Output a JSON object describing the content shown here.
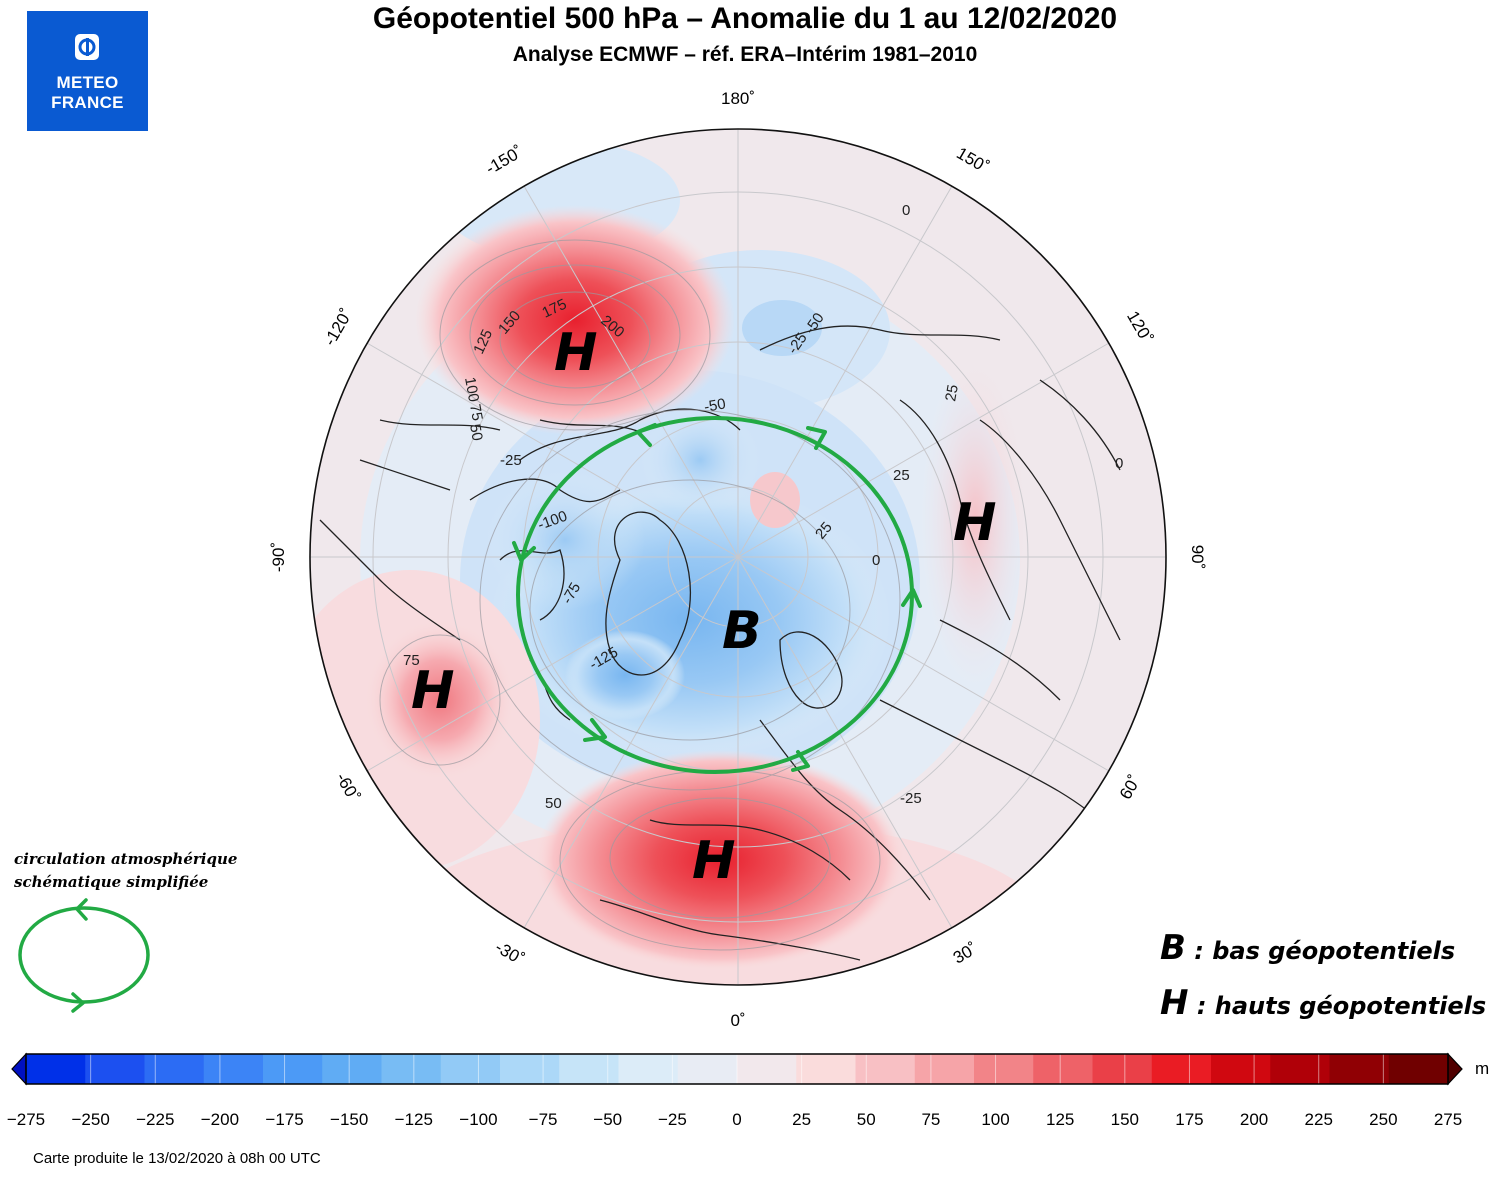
{
  "header": {
    "title": "Géopotentiel 500 hPa – Anomalie du 1 au 12/02/2020",
    "subtitle": "Analyse ECMWF – réf. ERA–Intérim 1981–2010"
  },
  "logo": {
    "line1": "METEO",
    "line2": "FRANCE"
  },
  "map": {
    "longitude_labels": {
      "top": "180˚",
      "bottom": "0˚",
      "left": "-90˚",
      "right": "90˚",
      "m150": "-150˚",
      "p150": "150˚",
      "m120": "-120˚",
      "p120": "120˚",
      "m60": "-60˚",
      "p60": "60˚",
      "m30": "-30˚",
      "p30": "30˚"
    },
    "contour_labels": [
      "175",
      "150",
      "125",
      "200",
      "100",
      "75",
      "50",
      "-25",
      "-50",
      "-100",
      "-75",
      "-125",
      "25",
      "0",
      "0",
      "0",
      "-50",
      "-25",
      "25",
      "75",
      "50",
      "-25",
      "25"
    ],
    "markers": {
      "high": "H",
      "low": "B"
    },
    "colors": {
      "high": "#e8202e",
      "low": "#7ab8f0",
      "circulation": "#22aa44",
      "neutral_pos": "#f0e6ea",
      "neutral_neg": "#e6ecf4"
    }
  },
  "legend": {
    "circulation_line1": "circulation atmosphérique",
    "circulation_line2": "schématique simplifiée",
    "b_letter": "B",
    "b_text": " : bas géopotentiels",
    "h_letter": "H",
    "h_text": " : hauts géopotentiels"
  },
  "colorbar": {
    "unit": "m",
    "ticks": [
      "-275",
      "-250",
      "-225",
      "-200",
      "-175",
      "-150",
      "-125",
      "-100",
      "-75",
      "-50",
      "-25",
      "0",
      "25",
      "50",
      "75",
      "100",
      "125",
      "150",
      "175",
      "200",
      "225",
      "250",
      "275"
    ],
    "colors": [
      "#0030e8",
      "#1c50f0",
      "#2c6cf4",
      "#3c84f6",
      "#4c9af6",
      "#60acf4",
      "#78bcf4",
      "#92caf6",
      "#acd8f8",
      "#c6e4f8",
      "#dcecf8",
      "#e8ecf4",
      "#f2e8ec",
      "#fadcdc",
      "#f8c0c4",
      "#f6a4a8",
      "#f28488",
      "#ee6268",
      "#ea4048",
      "#ea1c24",
      "#d00810",
      "#b00008",
      "#900004",
      "#700000"
    ]
  },
  "footer": "Carte produite le 13/02/2020 à 08h 00 UTC"
}
